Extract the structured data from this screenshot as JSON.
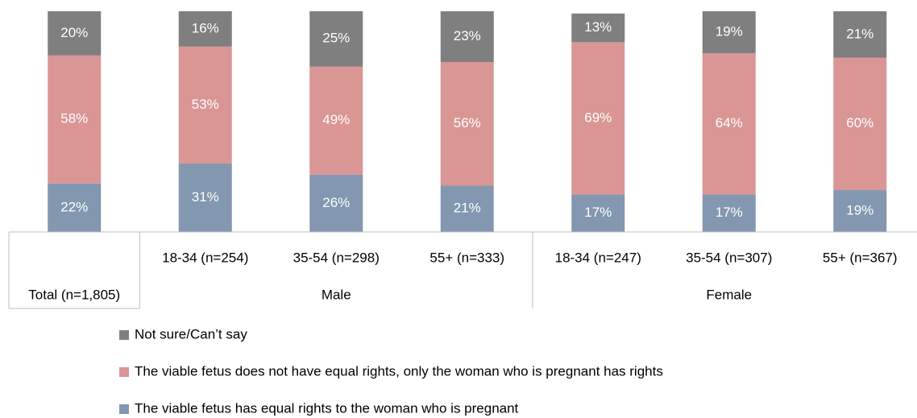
{
  "chart_data": {
    "type": "stacked_bar",
    "categories": [
      "Total (n=1,805)",
      "18-34 (n=254)",
      "35-54 (n=298)",
      "55+ (n=333)",
      "18-34 (n=247)",
      "35-54 (n=307)",
      "55+ (n=367)"
    ],
    "category_groups": [
      {
        "label": "Male",
        "members": [
          1,
          2,
          3
        ]
      },
      {
        "label": "Female",
        "members": [
          4,
          5,
          6
        ]
      }
    ],
    "series": [
      {
        "name": "The viable fetus has equal rights to the woman who is pregnant",
        "color": "#8497b0",
        "values": [
          22,
          31,
          26,
          21,
          17,
          17,
          19
        ],
        "value_labels": [
          "22%",
          "31%",
          "26%",
          "21%",
          "17%",
          "17%",
          "19%"
        ]
      },
      {
        "name": "The viable fetus does not have equal rights, only the woman who is pregnant has rights",
        "color": "#d99694",
        "values": [
          58,
          53,
          49,
          56,
          69,
          64,
          60
        ],
        "value_labels": [
          "58%",
          "53%",
          "49%",
          "56%",
          "69%",
          "64%",
          "60%"
        ]
      },
      {
        "name": "Not sure/Can’t say",
        "color": "#7f7f7f",
        "values": [
          20,
          16,
          25,
          23,
          13,
          19,
          21
        ],
        "value_labels": [
          "20%",
          "16%",
          "25%",
          "23%",
          "13%",
          "19%",
          "21%"
        ]
      }
    ],
    "ylim": [
      0,
      100
    ]
  }
}
